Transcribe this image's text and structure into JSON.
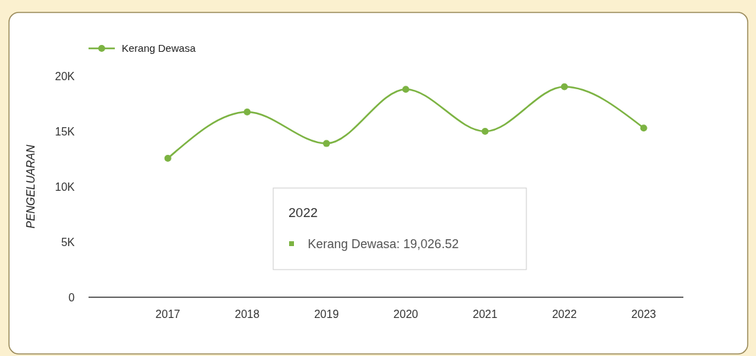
{
  "chart_data": {
    "type": "line",
    "categories": [
      "2017",
      "2018",
      "2019",
      "2020",
      "2021",
      "2022",
      "2023"
    ],
    "series": [
      {
        "name": "Kerang Dewasa",
        "color": "#7cb342",
        "values": [
          12560,
          16750,
          13900,
          18800,
          15000,
          19026.52,
          15300
        ]
      }
    ],
    "ylim": [
      0,
      20000
    ],
    "yticks": [
      {
        "value": 0,
        "label": "0"
      },
      {
        "value": 5000,
        "label": "5K"
      },
      {
        "value": 10000,
        "label": "10K"
      },
      {
        "value": 15000,
        "label": "15K"
      },
      {
        "value": 20000,
        "label": "20K"
      }
    ],
    "ylabel": "PENGELUARAN",
    "legend": "top left",
    "marker": "circle",
    "grid": false,
    "annotations": [
      "2022",
      "Kerang Dewasa: 19,026.52"
    ]
  }
}
